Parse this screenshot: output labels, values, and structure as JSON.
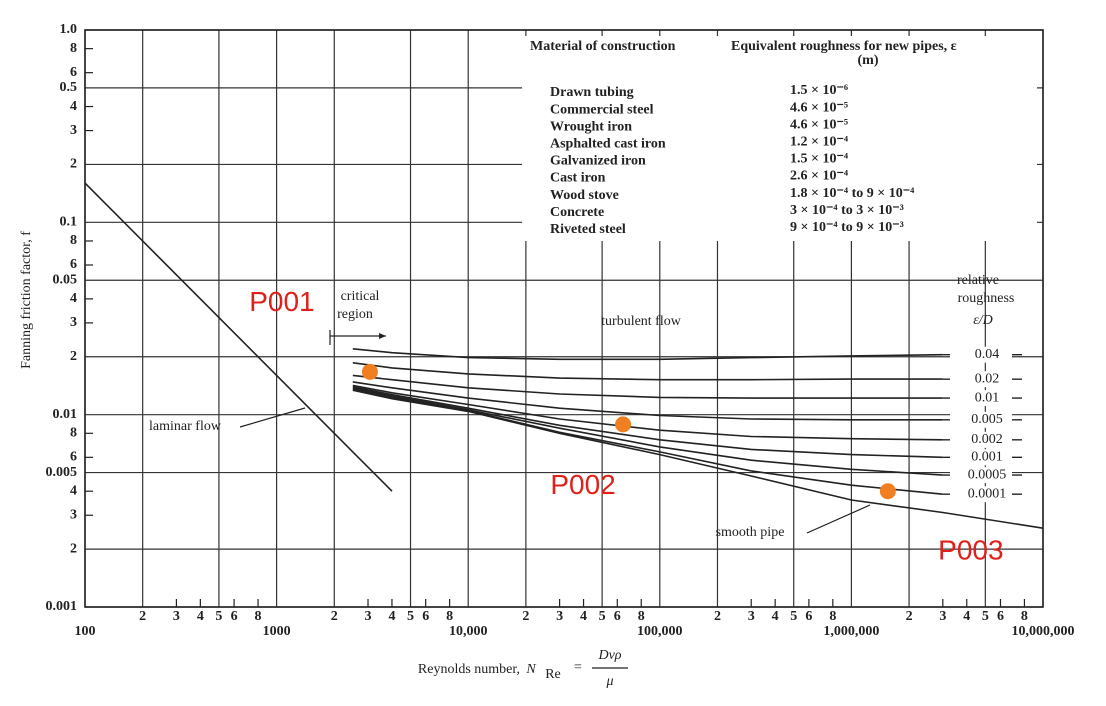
{
  "chart_data": {
    "type": "line",
    "xlog": true,
    "ylog": true,
    "grid": true,
    "ylabel": "Fanning friction factor, f",
    "xlabel": {
      "text": "Reynolds number, ",
      "symbol": "N",
      "subscript": "Re",
      "equals": "=",
      "numerator": "Dvρ",
      "denominator": "μ"
    },
    "xlim": [
      100,
      10000000
    ],
    "ylim": [
      0.001,
      1
    ],
    "xticks": [
      100,
      {
        "value": 200,
        "label": "2"
      },
      {
        "value": 300,
        "label": "3"
      },
      {
        "value": 400,
        "label": "4"
      },
      {
        "value": 500,
        "label": "5"
      },
      {
        "value": 600,
        "label": "6"
      },
      {
        "value": 800,
        "label": "8"
      },
      1000,
      {
        "value": 2000,
        "label": "2"
      },
      {
        "value": 3000,
        "label": "3"
      },
      {
        "value": 4000,
        "label": "4"
      },
      {
        "value": 5000,
        "label": "5"
      },
      {
        "value": 6000,
        "label": "6"
      },
      {
        "value": 8000,
        "label": "8"
      },
      {
        "value": 10000,
        "label": "10,000"
      },
      {
        "value": 20000,
        "label": "2"
      },
      {
        "value": 30000,
        "label": "3"
      },
      {
        "value": 40000,
        "label": "4"
      },
      {
        "value": 50000,
        "label": "5"
      },
      {
        "value": 60000,
        "label": "6"
      },
      {
        "value": 80000,
        "label": "8"
      },
      {
        "value": 100000,
        "label": "100,000"
      },
      {
        "value": 200000,
        "label": "2"
      },
      {
        "value": 300000,
        "label": "3"
      },
      {
        "value": 400000,
        "label": "4"
      },
      {
        "value": 500000,
        "label": "5"
      },
      {
        "value": 600000,
        "label": "6"
      },
      {
        "value": 800000,
        "label": "8"
      },
      {
        "value": 1000000,
        "label": "1,000,000"
      },
      {
        "value": 2000000,
        "label": "2"
      },
      {
        "value": 3000000,
        "label": "3"
      },
      {
        "value": 4000000,
        "label": "4"
      },
      {
        "value": 5000000,
        "label": "5"
      },
      {
        "value": 6000000,
        "label": "6"
      },
      {
        "value": 8000000,
        "label": "8"
      },
      {
        "value": 10000000,
        "label": "10,000,000"
      }
    ],
    "yticks": [
      {
        "value": 1,
        "label": "1.0"
      },
      {
        "value": 0.8,
        "label": "8"
      },
      {
        "value": 0.6,
        "label": "6"
      },
      0.5,
      {
        "value": 0.4,
        "label": "4"
      },
      {
        "value": 0.3,
        "label": "3"
      },
      {
        "value": 0.2,
        "label": "2"
      },
      0.1,
      {
        "value": 0.08,
        "label": "8"
      },
      {
        "value": 0.06,
        "label": "6"
      },
      0.05,
      {
        "value": 0.04,
        "label": "4"
      },
      {
        "value": 0.03,
        "label": "3"
      },
      {
        "value": 0.02,
        "label": "2"
      },
      0.01,
      {
        "value": 0.008,
        "label": "8"
      },
      {
        "value": 0.006,
        "label": "6"
      },
      0.005,
      {
        "value": 0.004,
        "label": "4"
      },
      {
        "value": 0.003,
        "label": "3"
      },
      {
        "value": 0.002,
        "label": "2"
      },
      0.001
    ],
    "x": [
      100,
      1000,
      2500,
      4000,
      10000,
      30000,
      100000,
      300000,
      1000000,
      3000000,
      10000000
    ],
    "series": [
      {
        "name": "laminar flow",
        "color": "#222222",
        "values": [
          0.16,
          0.016,
          0.0064,
          0.004,
          null,
          null,
          null,
          null,
          null,
          null,
          null
        ]
      },
      {
        "name": "0.04",
        "color": "#222222",
        "values": [
          null,
          null,
          0.022,
          0.021,
          0.0198,
          0.0194,
          0.0194,
          0.0198,
          0.0202,
          0.0205,
          null
        ]
      },
      {
        "name": "0.02",
        "color": "#222222",
        "values": [
          null,
          null,
          0.0186,
          0.0175,
          0.0163,
          0.0155,
          0.0152,
          0.0152,
          0.0153,
          0.0153,
          null
        ]
      },
      {
        "name": "0.01",
        "color": "#222222",
        "values": [
          null,
          null,
          0.016,
          0.0152,
          0.0138,
          0.0128,
          0.0123,
          0.0122,
          0.0122,
          0.0122,
          null
        ]
      },
      {
        "name": "0.005",
        "color": "#222222",
        "values": [
          null,
          null,
          0.0148,
          0.0138,
          0.0122,
          0.0108,
          0.0099,
          0.0095,
          0.0094,
          0.0094,
          null
        ]
      },
      {
        "name": "0.002",
        "color": "#222222",
        "values": [
          null,
          null,
          0.0142,
          0.013,
          0.0113,
          0.0095,
          0.0083,
          0.0077,
          0.0075,
          0.0074,
          null
        ]
      },
      {
        "name": "0.001",
        "color": "#222222",
        "values": [
          null,
          null,
          0.014,
          0.0127,
          0.0108,
          0.0088,
          0.0074,
          0.0066,
          0.0062,
          0.006,
          null
        ]
      },
      {
        "name": "0.0005",
        "color": "#222222",
        "values": [
          null,
          null,
          0.0138,
          0.0125,
          0.0106,
          0.0085,
          0.0068,
          0.0058,
          0.0052,
          0.00485,
          null
        ]
      },
      {
        "name": "0.0001",
        "color": "#222222",
        "values": [
          null,
          null,
          0.0136,
          0.0123,
          0.0105,
          0.0081,
          0.0064,
          0.0051,
          0.0043,
          0.00386,
          null
        ]
      },
      {
        "name": "smooth pipe",
        "color": "#222222",
        "values": [
          null,
          null,
          0.0134,
          0.0121,
          0.0104,
          0.008,
          0.0062,
          0.0048,
          0.0036,
          0.0031,
          0.00257
        ]
      }
    ],
    "markers": [
      {
        "label": "P001",
        "x": 3070,
        "y": 0.0167,
        "color": "#f07f22"
      },
      {
        "label": "P002",
        "x": 64300,
        "y": 0.0089,
        "color": "#f07f22"
      },
      {
        "label": "P003",
        "x": 1550000,
        "y": 0.004,
        "color": "#f07f22"
      }
    ],
    "annotations": {
      "critical_region": [
        "critical",
        "region"
      ],
      "turbulent_flow": "turbulent flow",
      "relative_roughness": [
        "relative",
        "roughness",
        "ε/D"
      ]
    },
    "table": {
      "headers": [
        "Material of construction",
        "Equivalent roughness for new pipes, ε",
        "(m)"
      ],
      "rows": [
        [
          "Drawn tubing",
          "1.5 × 10⁻⁶"
        ],
        [
          "Commercial steel",
          "4.6 × 10⁻⁵"
        ],
        [
          "Wrought iron",
          "4.6 × 10⁻⁵"
        ],
        [
          "Asphalted cast iron",
          "1.2 × 10⁻⁴"
        ],
        [
          "Galvanized iron",
          "1.5 × 10⁻⁴"
        ],
        [
          "Cast iron",
          "2.6 × 10⁻⁴"
        ],
        [
          "Wood stove",
          "1.8 × 10⁻⁴ to 9 × 10⁻⁴"
        ],
        [
          "Concrete",
          "3 × 10⁻⁴ to 3 × 10⁻³"
        ],
        [
          "Riveted steel",
          "9 × 10⁻⁴ to 9 × 10⁻³"
        ]
      ]
    }
  }
}
